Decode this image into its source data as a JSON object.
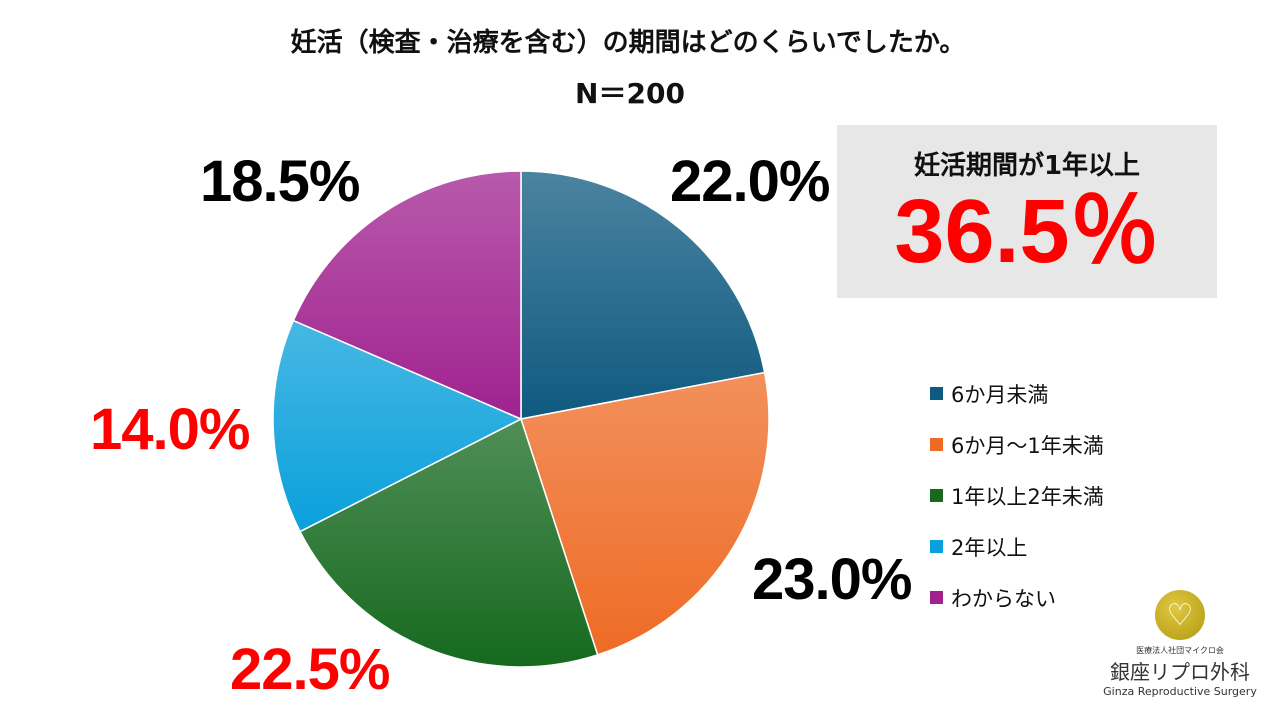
{
  "chart_data": {
    "type": "pie",
    "title": "妊活（検査・治療を含む）の期間はどのくらいでしたか。",
    "subtitle": "N＝200",
    "categories": [
      "6か月未満",
      "6か月～1年未満",
      "1年以上2年未満",
      "2年以上",
      "わからない"
    ],
    "values": [
      22.0,
      23.0,
      22.5,
      14.0,
      18.5
    ],
    "data_labels": [
      "22.0%",
      "23.0%",
      "22.5%",
      "14.0%",
      "18.5%"
    ],
    "label_colors": [
      "#000000",
      "#000000",
      "#ff0000",
      "#ff0000",
      "#000000"
    ],
    "colors": [
      "#0f5a80",
      "#ee6b25",
      "#16691f",
      "#0aa0db",
      "#a0228f"
    ],
    "legend_position": "right",
    "start_angle": "top",
    "direction": "clockwise"
  },
  "callout": {
    "label": "妊活期間が1年以上",
    "value": "36.5％"
  },
  "logo": {
    "org": "医療法人社団マイクロ会",
    "name": "銀座リプロ外科",
    "name_en": "Ginza Reproductive Surgery"
  }
}
